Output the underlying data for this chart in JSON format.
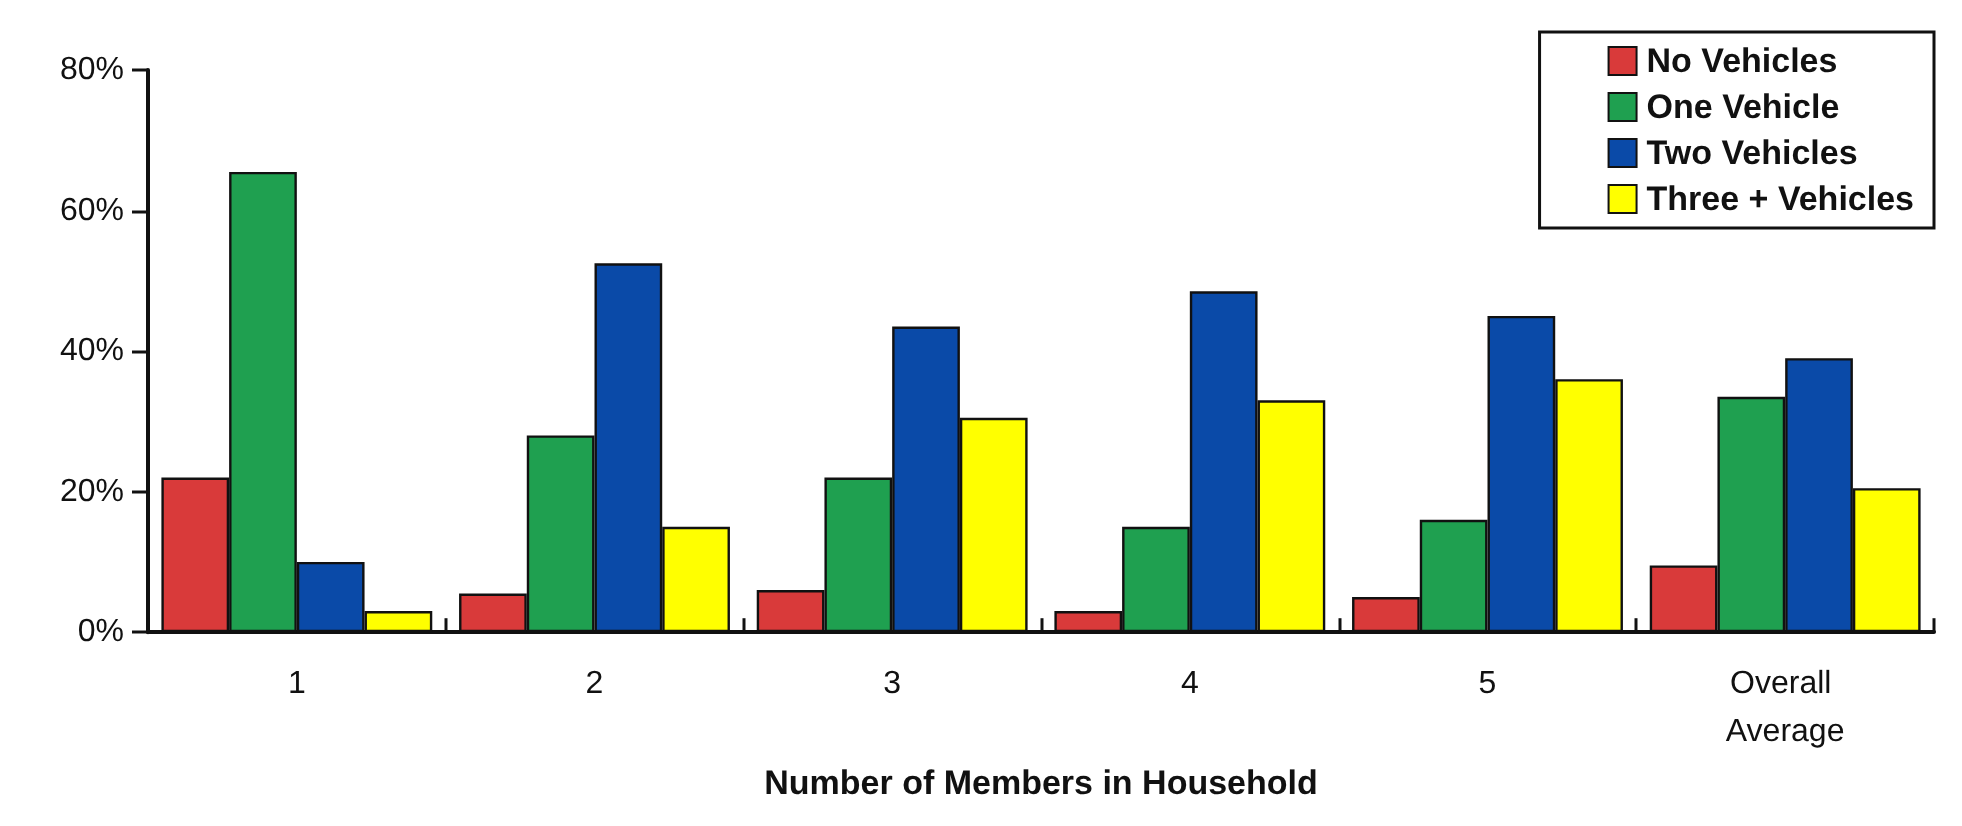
{
  "chart_data": {
    "type": "bar",
    "xlabel": "Number of Members in Household",
    "categories": [
      "1",
      "2",
      "3",
      "4",
      "5",
      "Overall Average"
    ],
    "series": [
      {
        "name": "No Vehicles",
        "color": "#d93a3a",
        "values": [
          22,
          5.5,
          6,
          3,
          5,
          9.5
        ]
      },
      {
        "name": "One Vehicle",
        "color": "#1fa050",
        "values": [
          65.5,
          28,
          22,
          15,
          16,
          33.5
        ]
      },
      {
        "name": "Two Vehicles",
        "color": "#0a4aa8",
        "values": [
          10,
          52.5,
          43.5,
          48.5,
          45,
          39
        ]
      },
      {
        "name": "Three + Vehicles",
        "color": "#ffff00",
        "values": [
          3,
          15,
          30.5,
          33,
          36,
          20.5
        ]
      }
    ],
    "ylim": [
      0,
      80
    ],
    "yticks": [
      {
        "value": 0,
        "label": "0%"
      },
      {
        "value": 20,
        "label": "20%"
      },
      {
        "value": 40,
        "label": "40%"
      },
      {
        "value": 60,
        "label": "60%"
      },
      {
        "value": 80,
        "label": "80%"
      }
    ],
    "grid": false,
    "legend": "top right"
  }
}
